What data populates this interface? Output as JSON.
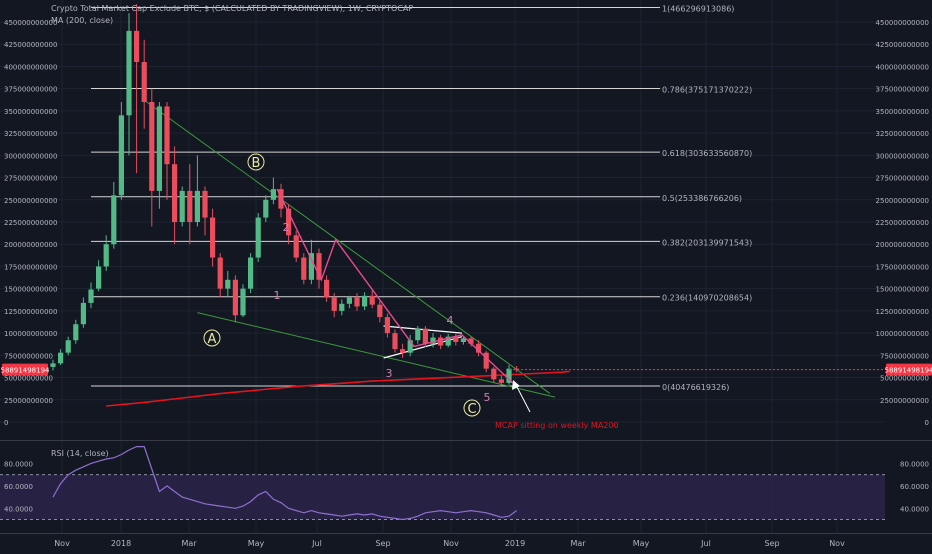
{
  "header": {
    "title": "Crypto Total Market Cap Exclude BTC, $ (CALCULATED BY TRADINGVIEW), 1W, CRYPTOCAP",
    "ma_label": "MA (200, close)"
  },
  "rsi_panel": {
    "label": "RSI (14, close)",
    "ticks": [
      {
        "label": "80.0000",
        "value": 80
      },
      {
        "label": "60.0000",
        "value": 60
      },
      {
        "label": "40.0000",
        "value": 40
      }
    ],
    "band_upper": 70,
    "band_lower": 30
  },
  "price_badge": "58891498194",
  "annotation_text": "MCAP sitting on weekly MA200",
  "colors": {
    "background": "#131722",
    "grid": "#1e2331",
    "text": "#b2b5be",
    "bull": "#53b987",
    "bear": "#eb4d5c",
    "ma": "#e3141e",
    "trendline": "#3d9a3d",
    "wave_line": "#e84a8f",
    "fib_line": "#d6d6d6",
    "rsi_line": "#8f6fcf",
    "badge": "#f23645",
    "annotation": "#e3141e",
    "wave_labels": "#e9eaa0",
    "wave_numbers": "#d080b4"
  },
  "chart_data": {
    "type": "candlestick",
    "title": "Crypto Total Market Cap Exclude BTC, $ (CALCULATED BY TRADINGVIEW), 1W, CRYPTOCAP",
    "xlabel": "",
    "ylabel": "",
    "ylim": [
      -20000000000,
      470000000000
    ],
    "x_tick_labels": [
      "Nov",
      "2018",
      "Mar",
      "May",
      "Jul",
      "Sep",
      "Nov",
      "2019",
      "Mar",
      "May",
      "Jul",
      "Sep",
      "Nov"
    ],
    "y_tick_labels": [
      "0",
      "25000000000",
      "50000000000",
      "75000000000",
      "100000000000",
      "125000000000",
      "150000000000",
      "175000000000",
      "200000000000",
      "225000000000",
      "250000000000",
      "275000000000",
      "300000000000",
      "325000000000",
      "350000000000",
      "375000000000",
      "400000000000",
      "425000000000",
      "450000000000"
    ],
    "candles": [
      {
        "o": 62,
        "c": 66,
        "h": 70,
        "l": 58
      },
      {
        "o": 66,
        "c": 78,
        "h": 82,
        "l": 64
      },
      {
        "o": 78,
        "c": 92,
        "h": 96,
        "l": 75
      },
      {
        "o": 92,
        "c": 110,
        "h": 115,
        "l": 88
      },
      {
        "o": 110,
        "c": 134,
        "h": 140,
        "l": 106
      },
      {
        "o": 134,
        "c": 149,
        "h": 157,
        "l": 128
      },
      {
        "o": 150,
        "c": 175,
        "h": 182,
        "l": 147
      },
      {
        "o": 175,
        "c": 200,
        "h": 210,
        "l": 170
      },
      {
        "o": 200,
        "c": 255,
        "h": 270,
        "l": 195
      },
      {
        "o": 255,
        "c": 345,
        "h": 360,
        "l": 250
      },
      {
        "o": 345,
        "c": 440,
        "h": 460,
        "l": 300
      },
      {
        "o": 440,
        "c": 405,
        "h": 470,
        "l": 280
      },
      {
        "o": 405,
        "c": 360,
        "h": 430,
        "l": 330
      },
      {
        "o": 360,
        "c": 260,
        "h": 375,
        "l": 220
      },
      {
        "o": 260,
        "c": 355,
        "h": 360,
        "l": 240
      },
      {
        "o": 355,
        "c": 290,
        "h": 360,
        "l": 250
      },
      {
        "o": 290,
        "c": 225,
        "h": 310,
        "l": 200
      },
      {
        "o": 225,
        "c": 260,
        "h": 265,
        "l": 220
      },
      {
        "o": 260,
        "c": 225,
        "h": 290,
        "l": 200
      },
      {
        "o": 225,
        "c": 260,
        "h": 300,
        "l": 220
      },
      {
        "o": 260,
        "c": 230,
        "h": 265,
        "l": 210
      },
      {
        "o": 230,
        "c": 185,
        "h": 240,
        "l": 175
      },
      {
        "o": 185,
        "c": 150,
        "h": 190,
        "l": 140
      },
      {
        "o": 150,
        "c": 160,
        "h": 170,
        "l": 140
      },
      {
        "o": 160,
        "c": 120,
        "h": 165,
        "l": 112
      },
      {
        "o": 120,
        "c": 150,
        "h": 155,
        "l": 118
      },
      {
        "o": 150,
        "c": 185,
        "h": 190,
        "l": 145
      },
      {
        "o": 185,
        "c": 230,
        "h": 235,
        "l": 180
      },
      {
        "o": 230,
        "c": 250,
        "h": 255,
        "l": 225
      },
      {
        "o": 250,
        "c": 262,
        "h": 275,
        "l": 245
      },
      {
        "o": 262,
        "c": 240,
        "h": 268,
        "l": 230
      },
      {
        "o": 240,
        "c": 210,
        "h": 245,
        "l": 200
      },
      {
        "o": 210,
        "c": 185,
        "h": 215,
        "l": 180
      },
      {
        "o": 185,
        "c": 160,
        "h": 190,
        "l": 155
      },
      {
        "o": 160,
        "c": 190,
        "h": 205,
        "l": 155
      },
      {
        "o": 190,
        "c": 160,
        "h": 195,
        "l": 150
      },
      {
        "o": 160,
        "c": 140,
        "h": 165,
        "l": 135
      },
      {
        "o": 140,
        "c": 125,
        "h": 145,
        "l": 118
      },
      {
        "o": 125,
        "c": 133,
        "h": 138,
        "l": 120
      },
      {
        "o": 133,
        "c": 140,
        "h": 142,
        "l": 128
      },
      {
        "o": 140,
        "c": 130,
        "h": 145,
        "l": 125
      },
      {
        "o": 130,
        "c": 142,
        "h": 146,
        "l": 126
      },
      {
        "o": 142,
        "c": 132,
        "h": 148,
        "l": 128
      },
      {
        "o": 132,
        "c": 118,
        "h": 136,
        "l": 112
      },
      {
        "o": 118,
        "c": 100,
        "h": 122,
        "l": 95
      },
      {
        "o": 100,
        "c": 82,
        "h": 104,
        "l": 78
      },
      {
        "o": 82,
        "c": 78,
        "h": 88,
        "l": 72
      },
      {
        "o": 78,
        "c": 92,
        "h": 98,
        "l": 74
      },
      {
        "o": 92,
        "c": 105,
        "h": 108,
        "l": 88
      },
      {
        "o": 105,
        "c": 88,
        "h": 108,
        "l": 84
      },
      {
        "o": 88,
        "c": 95,
        "h": 100,
        "l": 84
      },
      {
        "o": 95,
        "c": 86,
        "h": 98,
        "l": 82
      },
      {
        "o": 86,
        "c": 96,
        "h": 99,
        "l": 84
      },
      {
        "o": 96,
        "c": 90,
        "h": 99,
        "l": 86
      },
      {
        "o": 90,
        "c": 94,
        "h": 97,
        "l": 87
      },
      {
        "o": 94,
        "c": 88,
        "h": 96,
        "l": 85
      },
      {
        "o": 88,
        "c": 78,
        "h": 92,
        "l": 74
      },
      {
        "o": 78,
        "c": 60,
        "h": 80,
        "l": 56
      },
      {
        "o": 60,
        "c": 48,
        "h": 62,
        "l": 44
      },
      {
        "o": 48,
        "c": 44,
        "h": 52,
        "l": 41
      },
      {
        "o": 44,
        "c": 60,
        "h": 64,
        "l": 42
      },
      {
        "o": 60,
        "c": 59,
        "h": 63,
        "l": 56
      }
    ],
    "ma200": {
      "name": "MA (200, close)",
      "points": [
        [
          0,
          18
        ],
        [
          5,
          22
        ],
        [
          10,
          27
        ],
        [
          15,
          32
        ],
        [
          20,
          36
        ],
        [
          25,
          40
        ],
        [
          30,
          43
        ],
        [
          35,
          46
        ],
        [
          40,
          48
        ],
        [
          45,
          50
        ],
        [
          50,
          52
        ],
        [
          55,
          54
        ],
        [
          60,
          56
        ],
        [
          61,
          57
        ]
      ]
    },
    "fibonacci": [
      {
        "label": "1(466296913086)",
        "value": 466.296913086
      },
      {
        "label": "0.786(375171370222)",
        "value": 375.171370222
      },
      {
        "label": "0.618(303633560870)",
        "value": 303.63356087
      },
      {
        "label": "0.5(253386766206)",
        "value": 253.386766206
      },
      {
        "label": "0.382(203139971543)",
        "value": 203.139971543
      },
      {
        "label": "0.236(140970208654)",
        "value": 140.970208654
      },
      {
        "label": "0(40476619326)",
        "value": 40.476619326
      }
    ],
    "wave_labels": [
      "A",
      "B",
      "C"
    ],
    "wave_numbers": [
      "1",
      "2",
      "3",
      "4",
      "5"
    ],
    "last_price": 58891498194,
    "rsi": [
      50,
      62,
      70,
      74,
      77,
      80,
      82,
      84,
      85,
      88,
      92,
      95,
      95,
      75,
      55,
      60,
      55,
      50,
      48,
      46,
      44,
      43,
      42,
      41,
      40,
      42,
      46,
      52,
      55,
      48,
      45,
      40,
      38,
      36,
      38,
      36,
      35,
      34,
      33,
      34,
      35,
      34,
      35,
      33,
      32,
      31,
      30,
      31,
      33,
      36,
      37,
      38,
      37,
      36,
      37,
      38,
      37,
      36,
      34,
      32,
      33,
      38
    ]
  }
}
